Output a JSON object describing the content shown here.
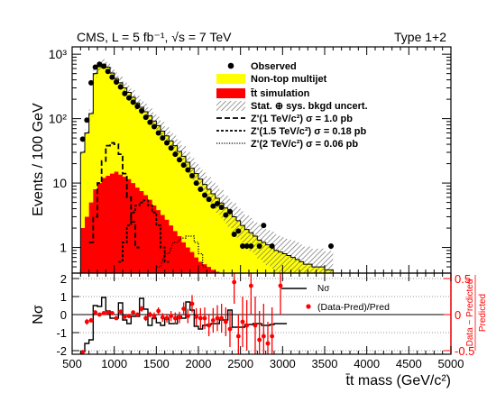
{
  "chart_data": [
    {
      "type": "histogram",
      "title": "CMS, L = 5 fb⁻¹, √s = 7 TeV",
      "category_label": "Type 1+2",
      "ylabel": "Events / 100 GeV",
      "yscale": "log",
      "ylim": [
        0.4,
        1300
      ],
      "xlim": [
        500,
        5000
      ],
      "bin_width": 50,
      "y_ticks": [
        "10³",
        "10²",
        "10",
        "1"
      ],
      "legend": {
        "observed": "Observed",
        "nontop": "Non-top multijet",
        "ttbar": "t̄t simulation",
        "uncert": "Stat. ⊕ sys. bkgd uncert.",
        "zp1": "Z'(1 TeV/c²) σ = 1.0 pb",
        "zp15": "Z'(1.5 TeV/c²) σ = 0.18 pb",
        "zp2": "Z'(2 TeV/c²) σ = 0.06 pb"
      },
      "bin_low_edges": [
        600,
        650,
        700,
        750,
        800,
        850,
        900,
        950,
        1000,
        1050,
        1100,
        1150,
        1200,
        1250,
        1300,
        1350,
        1400,
        1450,
        1500,
        1550,
        1600,
        1650,
        1700,
        1750,
        1800,
        1850,
        1900,
        1950,
        2000,
        2050,
        2100,
        2150,
        2200,
        2250,
        2300,
        2350,
        2400,
        2450,
        2500,
        2550,
        2600,
        2650,
        2700,
        2750,
        2800,
        2850,
        2900,
        2950,
        3000,
        3050,
        3100,
        3150,
        3200,
        3250,
        3300,
        3350,
        3400,
        3450,
        3500,
        3550
      ],
      "total_background": [
        30,
        60,
        120,
        500,
        640,
        700,
        630,
        510,
        420,
        360,
        300,
        255,
        215,
        175,
        150,
        128,
        110,
        92,
        78,
        64,
        54,
        45,
        38,
        31,
        26,
        21,
        17,
        14,
        11.5,
        9.5,
        8,
        6.8,
        5.8,
        4.9,
        4.1,
        3.5,
        3.0,
        2.6,
        2.2,
        1.9,
        1.7,
        1.5,
        1.3,
        1.2,
        1.1,
        1.0,
        0.9,
        0.85,
        0.8,
        0.75,
        0.7,
        0.65,
        0.6,
        0.55,
        0.55,
        0.5,
        0.5,
        0.5,
        0.45,
        0.45
      ],
      "ttbar_simulation": [
        2,
        3,
        5,
        8,
        10,
        12,
        13,
        14,
        15,
        13.5,
        12.5,
        11.5,
        10,
        8.5,
        7.5,
        6.5,
        5.5,
        4.5,
        3.8,
        3.2,
        2.7,
        2.2,
        1.8,
        1.5,
        1.2,
        1.0,
        0.85,
        0.7,
        0.6,
        0.55,
        0.5,
        0.45,
        0.42,
        0.4,
        0.4,
        0.4,
        0.4,
        0.4,
        0.4,
        0.4,
        0.4,
        0.4,
        0.4,
        0.4,
        0.4,
        0.4,
        0.4,
        0.4,
        0.4,
        0.4,
        0.4,
        0.4,
        0.4,
        0.4,
        0.4,
        0.4,
        0.4,
        0.4,
        0.4,
        0.4
      ],
      "observed": [
        {
          "x": 625,
          "y": 48
        },
        {
          "x": 675,
          "y": 95
        },
        {
          "x": 725,
          "y": 360
        },
        {
          "x": 775,
          "y": 630
        },
        {
          "x": 825,
          "y": 700
        },
        {
          "x": 875,
          "y": 650
        },
        {
          "x": 925,
          "y": 540
        },
        {
          "x": 975,
          "y": 440
        },
        {
          "x": 1025,
          "y": 370
        },
        {
          "x": 1075,
          "y": 310
        },
        {
          "x": 1125,
          "y": 245
        },
        {
          "x": 1175,
          "y": 210
        },
        {
          "x": 1225,
          "y": 180
        },
        {
          "x": 1275,
          "y": 155
        },
        {
          "x": 1325,
          "y": 132
        },
        {
          "x": 1375,
          "y": 105
        },
        {
          "x": 1425,
          "y": 88
        },
        {
          "x": 1475,
          "y": 75
        },
        {
          "x": 1525,
          "y": 60
        },
        {
          "x": 1575,
          "y": 50
        },
        {
          "x": 1625,
          "y": 42
        },
        {
          "x": 1675,
          "y": 35
        },
        {
          "x": 1725,
          "y": 28
        },
        {
          "x": 1775,
          "y": 23
        },
        {
          "x": 1825,
          "y": 19
        },
        {
          "x": 1875,
          "y": 16
        },
        {
          "x": 1925,
          "y": 13
        },
        {
          "x": 1975,
          "y": 10
        },
        {
          "x": 2025,
          "y": 8
        },
        {
          "x": 2075,
          "y": 6.5
        },
        {
          "x": 2125,
          "y": 5.6
        },
        {
          "x": 2175,
          "y": 4.4
        },
        {
          "x": 2225,
          "y": 4.8
        },
        {
          "x": 2275,
          "y": 4.2
        },
        {
          "x": 2325,
          "y": 3.2
        },
        {
          "x": 2375,
          "y": 3.6
        },
        {
          "x": 2425,
          "y": 1.6
        },
        {
          "x": 2475,
          "y": 1.8
        },
        {
          "x": 2525,
          "y": 1.05
        },
        {
          "x": 2575,
          "y": 1.05
        },
        {
          "x": 2625,
          "y": 1.05
        },
        {
          "x": 2725,
          "y": 1.05
        },
        {
          "x": 2775,
          "y": 2.2
        },
        {
          "x": 2875,
          "y": 1.05
        },
        {
          "x": 3575,
          "y": 1.05
        }
      ],
      "zprime_1tev": [
        {
          "x": 700,
          "y": 1.2
        },
        {
          "x": 750,
          "y": 3
        },
        {
          "x": 800,
          "y": 10
        },
        {
          "x": 850,
          "y": 22
        },
        {
          "x": 900,
          "y": 38
        },
        {
          "x": 950,
          "y": 42
        },
        {
          "x": 1000,
          "y": 40
        },
        {
          "x": 1050,
          "y": 28
        },
        {
          "x": 1100,
          "y": 14
        },
        {
          "x": 1150,
          "y": 6
        },
        {
          "x": 1200,
          "y": 2.5
        },
        {
          "x": 1250,
          "y": 1
        }
      ],
      "zprime_1p5tev": [
        {
          "x": 1050,
          "y": 0.6
        },
        {
          "x": 1100,
          "y": 1.2
        },
        {
          "x": 1150,
          "y": 2.2
        },
        {
          "x": 1200,
          "y": 3.5
        },
        {
          "x": 1250,
          "y": 4.5
        },
        {
          "x": 1300,
          "y": 5
        },
        {
          "x": 1350,
          "y": 5.4
        },
        {
          "x": 1400,
          "y": 4.5
        },
        {
          "x": 1450,
          "y": 3.5
        },
        {
          "x": 1500,
          "y": 2.2
        },
        {
          "x": 1550,
          "y": 1
        },
        {
          "x": 1600,
          "y": 0.6
        }
      ],
      "zprime_2tev": [
        {
          "x": 1500,
          "y": 0.5
        },
        {
          "x": 1600,
          "y": 0.8
        },
        {
          "x": 1700,
          "y": 1.2
        },
        {
          "x": 1800,
          "y": 1.4
        },
        {
          "x": 1850,
          "y": 1.5
        },
        {
          "x": 1900,
          "y": 1.5
        },
        {
          "x": 1950,
          "y": 1.2
        },
        {
          "x": 2000,
          "y": 0.8
        },
        {
          "x": 2050,
          "y": 0.5
        }
      ]
    },
    {
      "type": "histogram",
      "xlabel": "t̄t mass (GeV/c²)",
      "ylabel_left": "Nσ",
      "ylabel_right_numerator": "Data − Predicted",
      "ylabel_right_denominator": "Predicted",
      "ylim_left": [
        -2.2,
        2.3
      ],
      "ylim_right": [
        -0.55,
        0.575
      ],
      "x_ticks": [
        500,
        1000,
        1500,
        2000,
        2500,
        3000,
        3500,
        4000,
        4500,
        5000
      ],
      "left_ticks": [
        -2,
        -1,
        0,
        1,
        2
      ],
      "right_ticks": [
        -0.5,
        0,
        0.5
      ],
      "legend": {
        "nsigma": "Nσ",
        "ratio": "(Data-Pred)/Pred"
      },
      "nsigma_bin_low_edges": [
        600,
        650,
        700,
        750,
        800,
        850,
        900,
        950,
        1000,
        1050,
        1100,
        1150,
        1200,
        1250,
        1300,
        1350,
        1400,
        1450,
        1500,
        1550,
        1600,
        1650,
        1700,
        1750,
        1800,
        1850,
        1900,
        1950,
        2000,
        2050,
        2100,
        2150,
        2200,
        2250,
        2300,
        2350,
        2400,
        2450,
        2500,
        2550,
        2600,
        2650,
        2700,
        2750,
        2800,
        2850,
        2900,
        2950,
        3000
      ],
      "nsigma": [
        -2.05,
        -1.6,
        -1.4,
        0.5,
        0.45,
        0.95,
        0.2,
        -0.2,
        -0.2,
        0.65,
        -0.3,
        -0.5,
        -0.1,
        -0.1,
        0.9,
        0.3,
        -0.6,
        -0.2,
        -0.45,
        -0.6,
        -0.2,
        -0.5,
        -0.5,
        -0.1,
        -0.2,
        0.7,
        0.25,
        -0.65,
        -0.8,
        -0.6,
        -0.55,
        -0.5,
        -0.5,
        -0.3,
        -0.3,
        0.25,
        -0.7,
        -0.7,
        -0.7,
        -0.55,
        -0.55,
        -0.5,
        -0.5,
        -0.6,
        -0.6,
        -0.55,
        -0.5,
        -0.5,
        -0.5
      ],
      "ratio": [
        {
          "x": 625,
          "y": -0.52,
          "err": 0.02
        },
        {
          "x": 675,
          "y": -0.1,
          "err": 0.04
        },
        {
          "x": 725,
          "y": -0.08,
          "err": 0.03
        },
        {
          "x": 775,
          "y": 0.03,
          "err": 0.03
        },
        {
          "x": 825,
          "y": 0.0,
          "err": 0.02
        },
        {
          "x": 875,
          "y": 0.02,
          "err": 0.02
        },
        {
          "x": 925,
          "y": 0.03,
          "err": 0.02
        },
        {
          "x": 975,
          "y": 0.02,
          "err": 0.02
        },
        {
          "x": 1025,
          "y": -0.05,
          "err": 0.02
        },
        {
          "x": 1075,
          "y": 0.04,
          "err": 0.03
        },
        {
          "x": 1125,
          "y": -0.03,
          "err": 0.03
        },
        {
          "x": 1175,
          "y": -0.02,
          "err": 0.03
        },
        {
          "x": 1225,
          "y": 0.03,
          "err": 0.03
        },
        {
          "x": 1275,
          "y": 0.0,
          "err": 0.03
        },
        {
          "x": 1325,
          "y": 0.08,
          "err": 0.04
        },
        {
          "x": 1375,
          "y": -0.05,
          "err": 0.04
        },
        {
          "x": 1425,
          "y": 0.0,
          "err": 0.04
        },
        {
          "x": 1475,
          "y": -0.02,
          "err": 0.05
        },
        {
          "x": 1525,
          "y": 0.05,
          "err": 0.05
        },
        {
          "x": 1575,
          "y": -0.04,
          "err": 0.06
        },
        {
          "x": 1625,
          "y": -0.05,
          "err": 0.06
        },
        {
          "x": 1675,
          "y": -0.02,
          "err": 0.07
        },
        {
          "x": 1725,
          "y": -0.05,
          "err": 0.08
        },
        {
          "x": 1775,
          "y": -0.04,
          "err": 0.08
        },
        {
          "x": 1825,
          "y": 0.08,
          "err": 0.09
        },
        {
          "x": 1875,
          "y": -0.02,
          "err": 0.1
        },
        {
          "x": 1925,
          "y": 0.15,
          "err": 0.12
        },
        {
          "x": 1975,
          "y": -0.03,
          "err": 0.12
        },
        {
          "x": 2025,
          "y": -0.05,
          "err": 0.14
        },
        {
          "x": 2075,
          "y": -0.05,
          "err": 0.15
        },
        {
          "x": 2125,
          "y": -0.15,
          "err": 0.15
        },
        {
          "x": 2175,
          "y": -0.08,
          "err": 0.17
        },
        {
          "x": 2225,
          "y": -0.05,
          "err": 0.18
        },
        {
          "x": 2275,
          "y": -0.05,
          "err": 0.2
        },
        {
          "x": 2325,
          "y": -0.1,
          "err": 0.2
        },
        {
          "x": 2375,
          "y": -0.2,
          "err": 0.25
        },
        {
          "x": 2425,
          "y": 0.45,
          "err": 0.3
        },
        {
          "x": 2475,
          "y": -0.3,
          "err": 0.3
        },
        {
          "x": 2525,
          "y": -0.1,
          "err": 0.35
        },
        {
          "x": 2575,
          "y": -0.15,
          "err": 0.35
        },
        {
          "x": 2625,
          "y": 0.4,
          "err": 0.4
        },
        {
          "x": 2675,
          "y": -0.15,
          "err": 0.4
        },
        {
          "x": 2725,
          "y": -0.35,
          "err": 0.4
        },
        {
          "x": 2775,
          "y": -0.3,
          "err": 0.45
        },
        {
          "x": 2825,
          "y": -0.4,
          "err": 0.3
        },
        {
          "x": 2875,
          "y": -0.3,
          "err": 0.4
        },
        {
          "x": 2975,
          "y": 0.4,
          "err": 0.4
        }
      ]
    }
  ]
}
